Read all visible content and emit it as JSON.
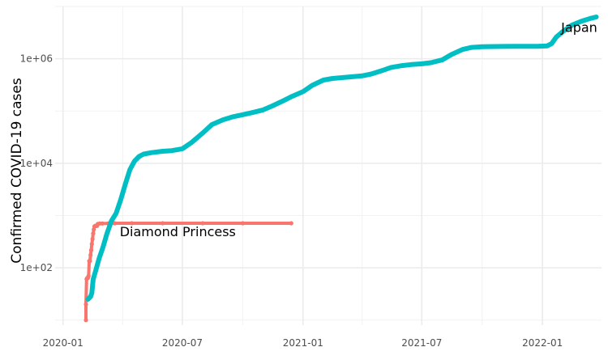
{
  "chart_data": {
    "type": "line",
    "title": "",
    "xlabel": "",
    "ylabel": "Confirmed COVID-19 cases",
    "y_scale": "log10",
    "grid": true,
    "legend": "none",
    "xlim": [
      "2019-12-20",
      "2022-04-01"
    ],
    "ylim": [
      8,
      10000000
    ],
    "x_ticks": [
      {
        "date": "2020-01-01",
        "label": "2020-01"
      },
      {
        "date": "2020-07-01",
        "label": "2020-07"
      },
      {
        "date": "2021-01-01",
        "label": "2021-01"
      },
      {
        "date": "2021-07-01",
        "label": "2021-07"
      },
      {
        "date": "2022-01-01",
        "label": "2022-01"
      }
    ],
    "x_minor_ticks": [
      "2020-04-01",
      "2020-10-01",
      "2021-04-01",
      "2021-10-01"
    ],
    "y_ticks": [
      {
        "value": 100,
        "label": "1e+02"
      },
      {
        "value": 10000,
        "label": "1e+04"
      },
      {
        "value": 1000000,
        "label": "1e+06"
      }
    ],
    "y_minor_ticks": [
      10,
      1000,
      100000,
      10000000
    ],
    "series": [
      {
        "name": "Diamond Princess",
        "color": "#F8766D",
        "points": [
          [
            "2020-02-05",
            10
          ],
          [
            "2020-02-05",
            20
          ],
          [
            "2020-02-06",
            61
          ],
          [
            "2020-02-07",
            64
          ],
          [
            "2020-02-08",
            64
          ],
          [
            "2020-02-09",
            70
          ],
          [
            "2020-02-10",
            135
          ],
          [
            "2020-02-11",
            135
          ],
          [
            "2020-02-12",
            175
          ],
          [
            "2020-02-13",
            218
          ],
          [
            "2020-02-14",
            285
          ],
          [
            "2020-02-15",
            355
          ],
          [
            "2020-02-16",
            454
          ],
          [
            "2020-02-17",
            542
          ],
          [
            "2020-02-18",
            621
          ],
          [
            "2020-02-19",
            634
          ],
          [
            "2020-02-20",
            634
          ],
          [
            "2020-02-21",
            634
          ],
          [
            "2020-02-22",
            634
          ],
          [
            "2020-02-23",
            691
          ],
          [
            "2020-02-26",
            705
          ],
          [
            "2020-03-01",
            705
          ],
          [
            "2020-03-10",
            706
          ],
          [
            "2020-03-20",
            712
          ],
          [
            "2020-04-15",
            712
          ],
          [
            "2020-06-01",
            712
          ],
          [
            "2020-08-01",
            712
          ],
          [
            "2020-10-01",
            712
          ],
          [
            "2020-12-14",
            712
          ]
        ]
      },
      {
        "name": "Japan",
        "color": "#00BFC4",
        "points": [
          [
            "2020-02-08",
            25
          ],
          [
            "2020-02-12",
            28
          ],
          [
            "2020-02-14",
            33
          ],
          [
            "2020-02-16",
            60
          ],
          [
            "2020-02-20",
            90
          ],
          [
            "2020-02-25",
            150
          ],
          [
            "2020-03-02",
            250
          ],
          [
            "2020-03-08",
            450
          ],
          [
            "2020-03-15",
            800
          ],
          [
            "2020-03-22",
            1100
          ],
          [
            "2020-03-29",
            2000
          ],
          [
            "2020-04-05",
            4000
          ],
          [
            "2020-04-12",
            7500
          ],
          [
            "2020-04-19",
            11000
          ],
          [
            "2020-04-26",
            13500
          ],
          [
            "2020-05-03",
            15000
          ],
          [
            "2020-05-15",
            16000
          ],
          [
            "2020-06-01",
            17000
          ],
          [
            "2020-06-15",
            17500
          ],
          [
            "2020-07-01",
            19000
          ],
          [
            "2020-07-15",
            25000
          ],
          [
            "2020-08-01",
            38000
          ],
          [
            "2020-08-15",
            55000
          ],
          [
            "2020-09-01",
            68000
          ],
          [
            "2020-09-15",
            77000
          ],
          [
            "2020-10-01",
            85000
          ],
          [
            "2020-10-15",
            93000
          ],
          [
            "2020-11-01",
            105000
          ],
          [
            "2020-11-15",
            125000
          ],
          [
            "2020-12-01",
            155000
          ],
          [
            "2020-12-15",
            190000
          ],
          [
            "2021-01-01",
            235000
          ],
          [
            "2021-01-15",
            310000
          ],
          [
            "2021-02-01",
            390000
          ],
          [
            "2021-02-15",
            420000
          ],
          [
            "2021-03-01",
            435000
          ],
          [
            "2021-03-15",
            450000
          ],
          [
            "2021-04-01",
            470000
          ],
          [
            "2021-04-15",
            510000
          ],
          [
            "2021-05-01",
            590000
          ],
          [
            "2021-05-15",
            680000
          ],
          [
            "2021-06-01",
            740000
          ],
          [
            "2021-06-15",
            775000
          ],
          [
            "2021-07-01",
            800000
          ],
          [
            "2021-07-15",
            840000
          ],
          [
            "2021-08-01",
            950000
          ],
          [
            "2021-08-15",
            1200000
          ],
          [
            "2021-09-01",
            1500000
          ],
          [
            "2021-09-15",
            1650000
          ],
          [
            "2021-10-01",
            1700000
          ],
          [
            "2021-11-01",
            1720000
          ],
          [
            "2021-12-01",
            1730000
          ],
          [
            "2021-12-25",
            1735000
          ],
          [
            "2022-01-08",
            1760000
          ],
          [
            "2022-01-15",
            1950000
          ],
          [
            "2022-01-22",
            2600000
          ],
          [
            "2022-02-01",
            3300000
          ],
          [
            "2022-02-15",
            4400000
          ],
          [
            "2022-03-01",
            5200000
          ],
          [
            "2022-03-15",
            5900000
          ],
          [
            "2022-03-24",
            6300000
          ]
        ]
      }
    ],
    "annotations": [
      {
        "text": "Diamond Princess",
        "x": "2020-06-24",
        "y": 500
      },
      {
        "text": "Japan",
        "x": "2022-02-26",
        "y": 4000000
      }
    ]
  }
}
